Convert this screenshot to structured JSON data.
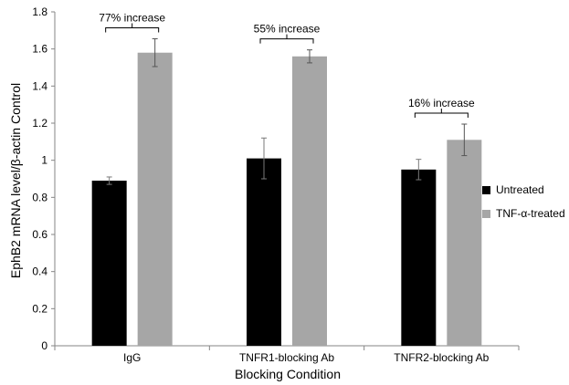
{
  "chart_data": {
    "type": "bar",
    "categories": [
      "IgG",
      "TNFR1-blocking Ab",
      "TNFR2-blocking Ab"
    ],
    "series": [
      {
        "name": "Untreated",
        "values": [
          0.89,
          1.01,
          0.95
        ],
        "errors": [
          0.02,
          0.11,
          0.055
        ]
      },
      {
        "name": "TNF-α-treated",
        "values": [
          1.58,
          1.56,
          1.11
        ],
        "errors": [
          0.075,
          0.035,
          0.085
        ]
      }
    ],
    "colors": [
      "#000000",
      "#a6a6a6"
    ],
    "xlabel": "Blocking Condition",
    "ylabel": "EphB2 mRNA level/β-actin Control",
    "ylim": [
      0,
      1.8
    ],
    "yticks": [
      "0",
      "0.2",
      "0.4",
      "0.6",
      "0.8",
      "1",
      "1.2",
      "1.4",
      "1.6",
      "1.8"
    ],
    "annotations": [
      "77% increase",
      "55% increase",
      "16% increase"
    ],
    "legend_position": "right",
    "grid": false
  }
}
